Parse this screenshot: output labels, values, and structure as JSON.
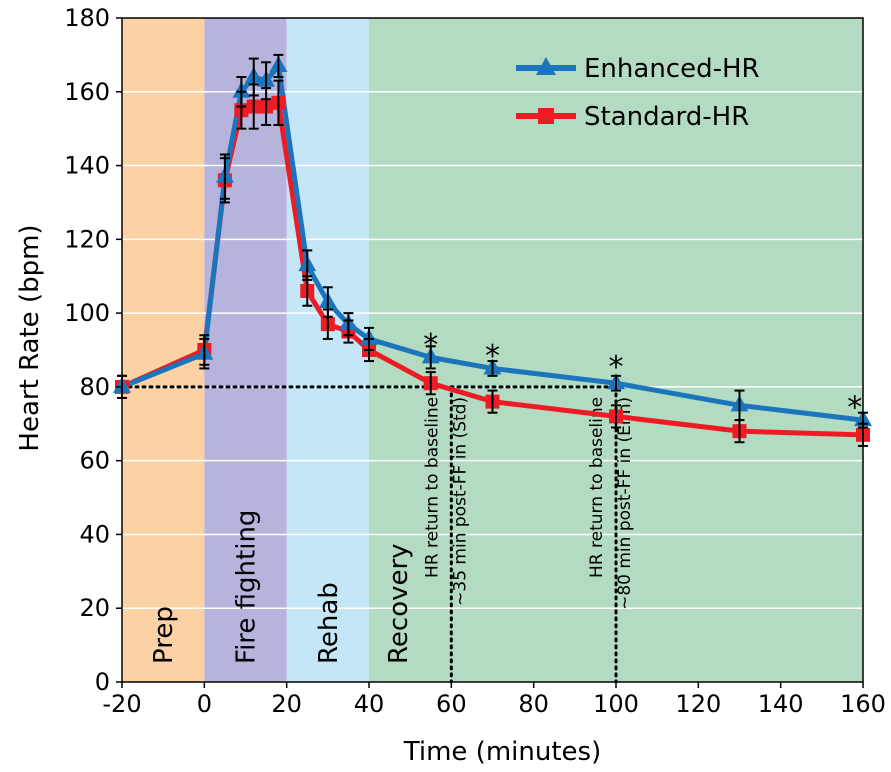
{
  "chart_data": {
    "type": "line",
    "xlabel": "Time (minutes)",
    "ylabel": "Heart Rate (bpm)",
    "xlim": [
      -20,
      160
    ],
    "ylim": [
      0,
      180
    ],
    "xticks": [
      -20,
      0,
      20,
      40,
      60,
      80,
      100,
      120,
      140,
      160
    ],
    "yticks": [
      0,
      20,
      40,
      60,
      80,
      100,
      120,
      140,
      160,
      180
    ],
    "grid": "horizontal",
    "legend_position": "top-right",
    "phases": [
      {
        "label": "Prep",
        "start": -20,
        "end": 0,
        "color": "#fcd1a4"
      },
      {
        "label": "Fire fighting",
        "start": 0,
        "end": 20,
        "color": "#b6b4dd"
      },
      {
        "label": "Rehab",
        "start": 20,
        "end": 40,
        "color": "#c5e6f7"
      },
      {
        "label": "Recovery",
        "start": 40,
        "end": 160,
        "color": "#b3dbc2"
      }
    ],
    "series": [
      {
        "name": "Enhanced-HR",
        "color": "#1b75bc",
        "marker": "triangle",
        "x": [
          -20,
          0,
          5,
          9,
          12,
          15,
          18,
          25,
          30,
          35,
          40,
          55,
          70,
          100,
          130,
          160
        ],
        "y": [
          80,
          89,
          137,
          160,
          164,
          163,
          167,
          113,
          103,
          97,
          93,
          88,
          85,
          81,
          75,
          71
        ],
        "err": [
          3,
          4,
          6,
          4,
          5,
          5,
          3,
          4,
          4,
          3,
          3,
          3,
          2,
          2,
          4,
          2
        ]
      },
      {
        "name": "Standard-HR",
        "color": "#ed1c24",
        "marker": "square",
        "x": [
          -20,
          0,
          5,
          9,
          12,
          15,
          18,
          25,
          30,
          35,
          40,
          55,
          70,
          100,
          130,
          160
        ],
        "y": [
          80,
          90,
          136,
          155,
          156,
          156,
          157,
          106,
          97,
          95,
          90,
          81,
          76,
          72,
          68,
          67
        ],
        "err": [
          3,
          4,
          6,
          5,
          6,
          5,
          6,
          4,
          4,
          3,
          3,
          3,
          3,
          3,
          3,
          3
        ]
      }
    ],
    "significance": [
      {
        "label": "*",
        "x": 55,
        "y": 93
      },
      {
        "label": "*",
        "x": 70,
        "y": 90
      },
      {
        "label": "*",
        "x": 100,
        "y": 87
      },
      {
        "label": "*",
        "x": 158,
        "y": 76
      }
    ],
    "baseline": {
      "y": 80,
      "x_start": -20,
      "x_end": 100
    },
    "annotations": [
      {
        "line1": "HR return to baseline",
        "line2": "~35 min post-FF in (Std)",
        "x": 60,
        "y_top": 80
      },
      {
        "line1": "HR return to baseline",
        "line2": "~80 min post-FF in (Enh)",
        "x": 100,
        "y_top": 80
      }
    ]
  }
}
